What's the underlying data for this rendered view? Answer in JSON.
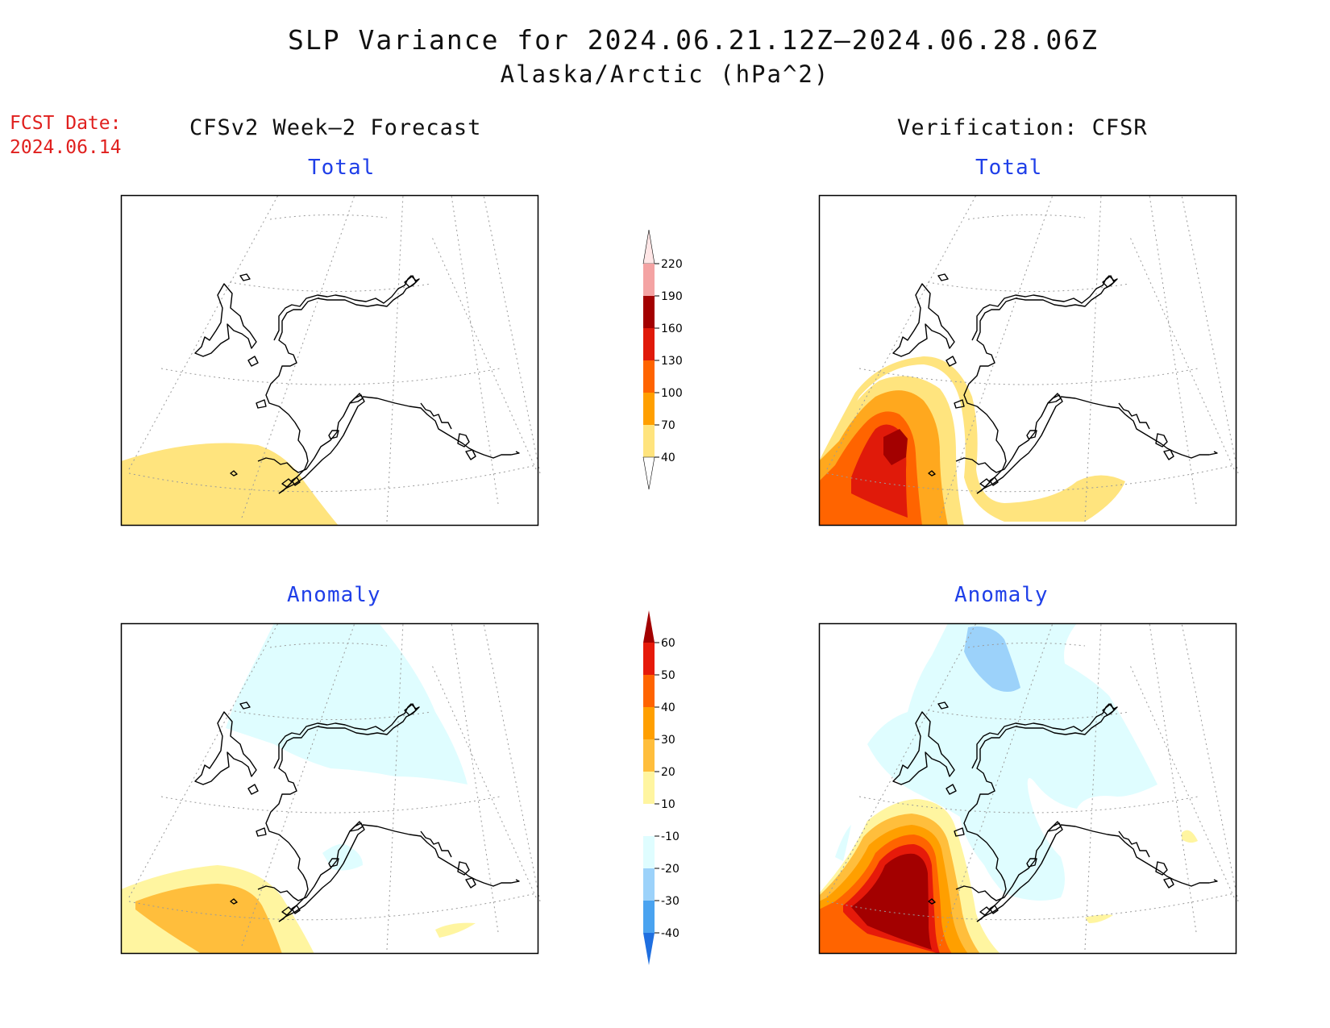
{
  "title": {
    "line1": "SLP Variance for 2024.06.21.12Z—2024.06.28.06Z",
    "line2": "Alaska/Arctic (hPa^2)"
  },
  "fcst_date": {
    "label": "FCST Date:",
    "value": "2024.06.14"
  },
  "columns": {
    "left": "CFSv2 Week—2 Forecast",
    "right": "Verification: CFSR"
  },
  "panels": {
    "forecast_total": "Total",
    "verification_total": "Total",
    "forecast_anomaly": "Anomaly",
    "verification_anomaly": "Anomaly"
  },
  "colorbars": {
    "total": {
      "levels": [
        "220",
        "190",
        "160",
        "130",
        "100",
        "70",
        "40"
      ],
      "colors": [
        "#f4a3a3",
        "#a30000",
        "#e01a0a",
        "#ff6400",
        "#ff9f00",
        "#ffe47e"
      ],
      "top_color": "#ffe6e6"
    },
    "anomaly": {
      "levels": [
        "60",
        "50",
        "40",
        "30",
        "20",
        "10",
        "-10",
        "-20",
        "-30",
        "-40"
      ],
      "colors": [
        "#a30000",
        "#e61a0a",
        "#ff6400",
        "#ff9f00",
        "#ffbe3c",
        "#fff5a0",
        "#ffffff",
        "#dffdff",
        "#9cd2fa",
        "#4aa3f0",
        "#1f6fe0"
      ],
      "top_arrow_color": "#a30000",
      "bottom_arrow_color": "#1f6fe0"
    }
  }
}
